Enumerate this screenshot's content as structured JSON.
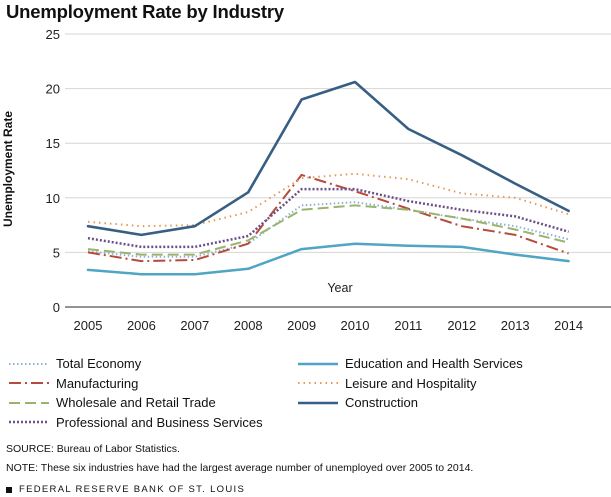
{
  "chart_data": {
    "type": "line",
    "title": "Unemployment Rate by Industry",
    "ylabel": "Unemployment Rate",
    "xlabel": "Year",
    "ylim": [
      0,
      25
    ],
    "yticks": [
      0,
      5,
      10,
      15,
      20,
      25
    ],
    "categories": [
      "2005",
      "2006",
      "2007",
      "2008",
      "2009",
      "2010",
      "2011",
      "2012",
      "2013",
      "2014"
    ],
    "series": [
      {
        "name": "Total Economy",
        "color": "#8fb0d3",
        "dash": "1.5 2.5",
        "width": 2,
        "values": [
          5.1,
          4.6,
          4.6,
          5.8,
          9.3,
          9.6,
          8.9,
          8.1,
          7.4,
          6.2
        ]
      },
      {
        "name": "Manufacturing",
        "color": "#b54b3c",
        "dash": "12 4 2 4",
        "width": 2,
        "values": [
          5.0,
          4.2,
          4.3,
          5.8,
          12.1,
          10.6,
          9.0,
          7.4,
          6.6,
          4.9
        ]
      },
      {
        "name": "Wholesale and Retail Trade",
        "color": "#9ab46a",
        "dash": "11 5",
        "width": 2,
        "values": [
          5.3,
          4.8,
          4.8,
          6.1,
          8.9,
          9.3,
          8.9,
          8.1,
          7.1,
          5.9
        ]
      },
      {
        "name": "Professional and Business Services",
        "color": "#6a4f8a",
        "dash": "2 2",
        "width": 2.5,
        "values": [
          6.3,
          5.5,
          5.5,
          6.5,
          10.8,
          10.8,
          9.7,
          8.9,
          8.3,
          6.9
        ]
      },
      {
        "name": "Education and Health Services",
        "color": "#4fa5c3",
        "dash": "",
        "width": 2.5,
        "values": [
          3.4,
          3.0,
          3.0,
          3.5,
          5.3,
          5.8,
          5.6,
          5.5,
          4.8,
          4.2
        ]
      },
      {
        "name": "Leisure and Hospitality",
        "color": "#e39a58",
        "dash": "1.5 4",
        "width": 2,
        "values": [
          7.8,
          7.4,
          7.5,
          8.7,
          11.8,
          12.2,
          11.7,
          10.4,
          10.0,
          8.5
        ]
      },
      {
        "name": "Construction",
        "color": "#375e83",
        "dash": "",
        "width": 2.6,
        "values": [
          7.4,
          6.6,
          7.4,
          10.5,
          19.0,
          20.6,
          16.3,
          13.9,
          11.3,
          8.8
        ]
      }
    ],
    "legend_columns": [
      [
        0,
        1,
        2,
        3
      ],
      [
        4,
        5,
        6
      ]
    ]
  },
  "notes": {
    "source": "SOURCE: Bureau of Labor Statistics.",
    "note": "NOTE: These six industries have had the largest average number of unemployed over 2005 to 2014.",
    "footer": "FEDERAL RESERVE BANK OF ST. LOUIS"
  }
}
